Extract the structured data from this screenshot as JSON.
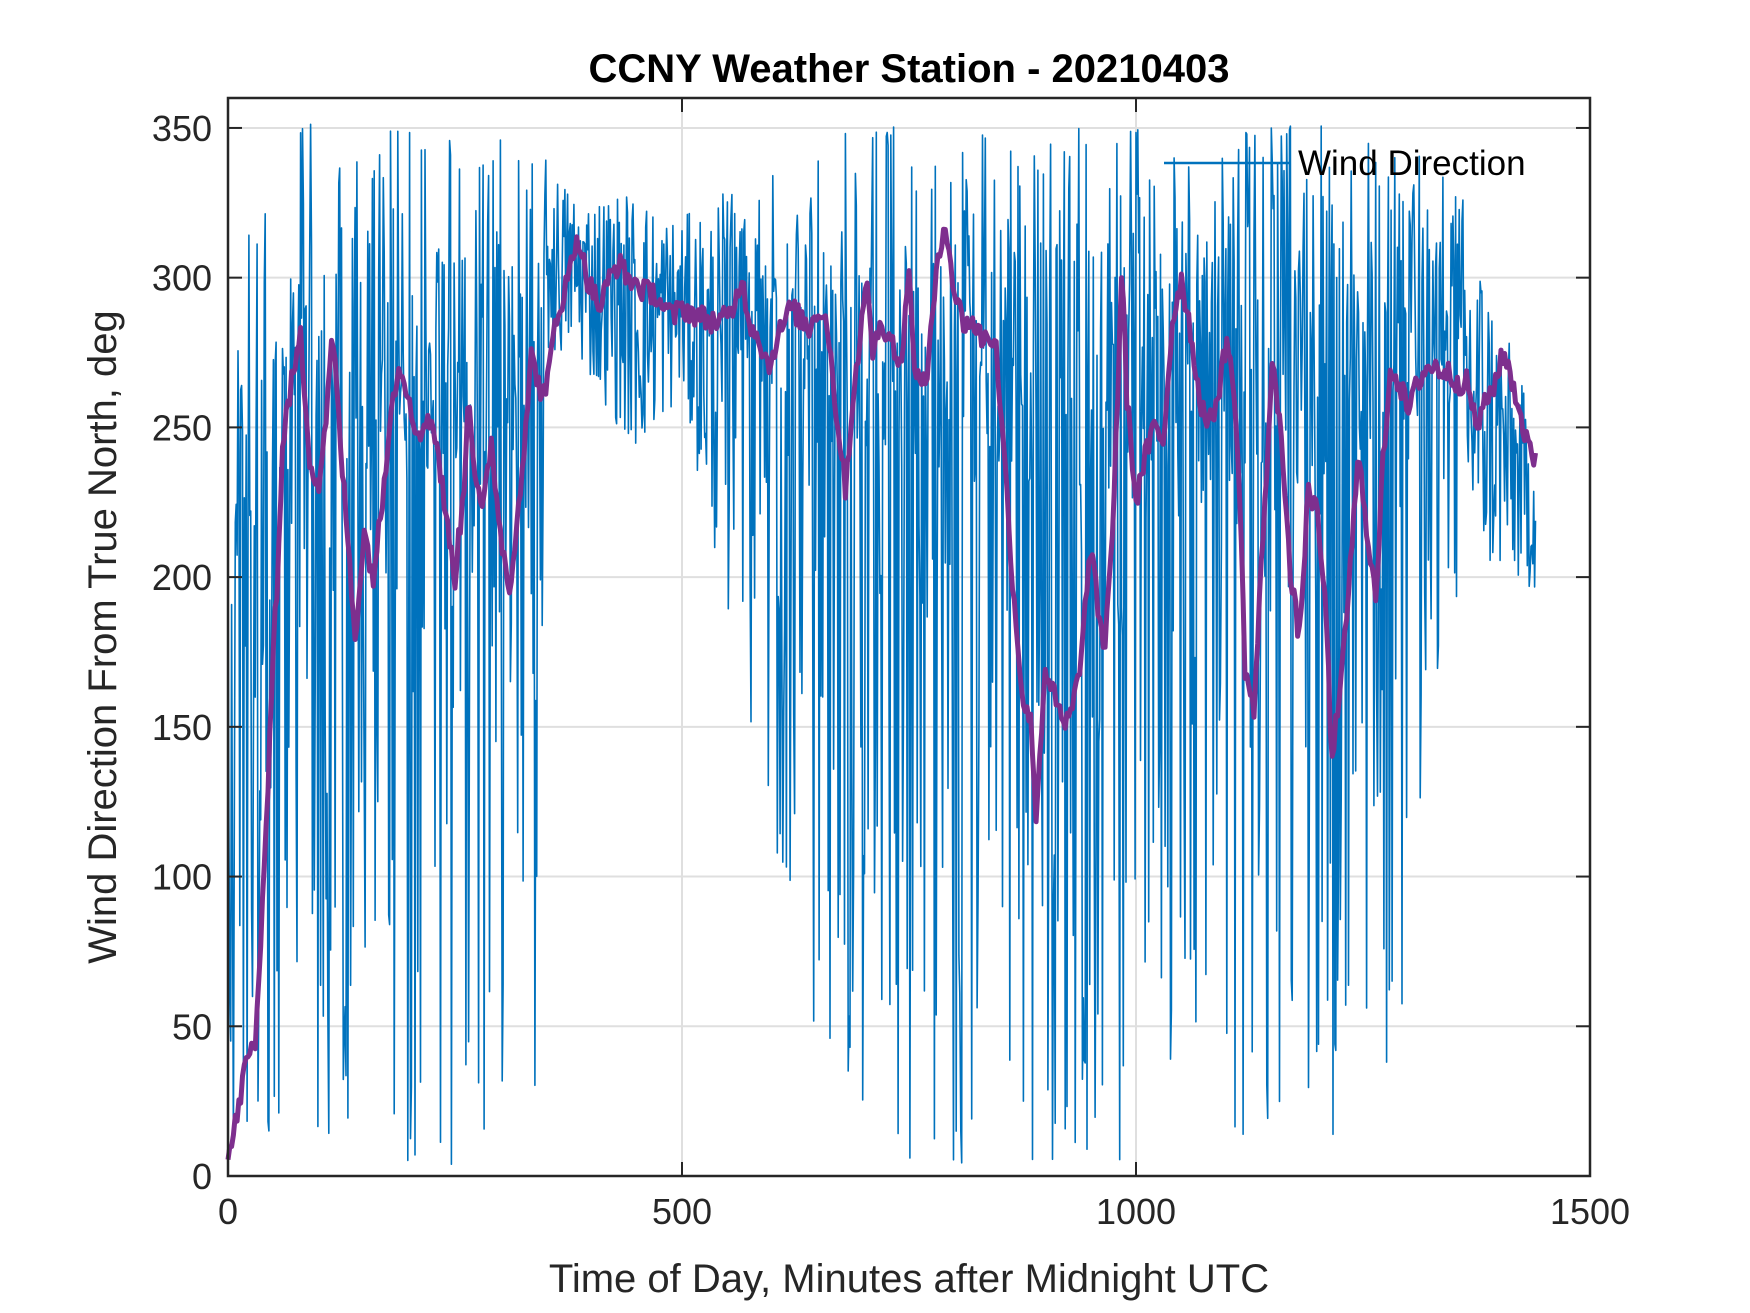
{
  "chart_data": {
    "type": "line",
    "title": "CCNY Weather Station - 20210403",
    "xlabel": "Time of Day, Minutes after Midnight UTC",
    "ylabel": "Wind Direction From True North, deg",
    "xlim": [
      0,
      1500
    ],
    "ylim": [
      0,
      360
    ],
    "xticks": [
      0,
      500,
      1000,
      1500
    ],
    "yticks": [
      0,
      50,
      100,
      150,
      200,
      250,
      300,
      350
    ],
    "grid": true,
    "legend": {
      "placement": "top-right",
      "entries": [
        "Wind Direction"
      ]
    },
    "series": [
      {
        "name": "Wind Direction",
        "color": "#0072bd",
        "style": "raw",
        "x_range": [
          0,
          1440
        ],
        "envelope": [
          {
            "x": 0,
            "low": 0,
            "high": 305
          },
          {
            "x": 50,
            "low": 5,
            "high": 350
          },
          {
            "x": 100,
            "low": 5,
            "high": 352
          },
          {
            "x": 200,
            "low": 3,
            "high": 352
          },
          {
            "x": 300,
            "low": 5,
            "high": 350
          },
          {
            "x": 340,
            "low": 30,
            "high": 345
          },
          {
            "x": 350,
            "low": 270,
            "high": 340
          },
          {
            "x": 380,
            "low": 275,
            "high": 330
          },
          {
            "x": 450,
            "low": 240,
            "high": 330
          },
          {
            "x": 500,
            "low": 260,
            "high": 320
          },
          {
            "x": 650,
            "low": 40,
            "high": 352
          },
          {
            "x": 760,
            "low": 0,
            "high": 352
          },
          {
            "x": 840,
            "low": 5,
            "high": 352
          },
          {
            "x": 950,
            "low": 3,
            "high": 350
          },
          {
            "x": 1050,
            "low": 5,
            "high": 350
          },
          {
            "x": 1200,
            "low": 5,
            "high": 352
          },
          {
            "x": 1300,
            "low": 30,
            "high": 345
          },
          {
            "x": 1360,
            "low": 200,
            "high": 330
          },
          {
            "x": 1440,
            "low": 195,
            "high": 250
          }
        ]
      },
      {
        "name": "",
        "color": "#7e2f8e",
        "style": "smoothed",
        "points": [
          [
            0,
            5
          ],
          [
            10,
            20
          ],
          [
            20,
            38
          ],
          [
            30,
            45
          ],
          [
            40,
            100
          ],
          [
            50,
            180
          ],
          [
            55,
            200
          ],
          [
            60,
            245
          ],
          [
            70,
            265
          ],
          [
            80,
            280
          ],
          [
            90,
            240
          ],
          [
            100,
            230
          ],
          [
            110,
            260
          ],
          [
            115,
            282
          ],
          [
            125,
            240
          ],
          [
            135,
            200
          ],
          [
            140,
            180
          ],
          [
            150,
            215
          ],
          [
            160,
            200
          ],
          [
            170,
            225
          ],
          [
            180,
            260
          ],
          [
            190,
            270
          ],
          [
            200,
            260
          ],
          [
            210,
            245
          ],
          [
            220,
            255
          ],
          [
            230,
            245
          ],
          [
            240,
            220
          ],
          [
            250,
            200
          ],
          [
            260,
            230
          ],
          [
            265,
            265
          ],
          [
            270,
            240
          ],
          [
            280,
            220
          ],
          [
            290,
            245
          ],
          [
            300,
            215
          ],
          [
            310,
            195
          ],
          [
            320,
            225
          ],
          [
            330,
            255
          ],
          [
            335,
            280
          ],
          [
            340,
            265
          ],
          [
            350,
            260
          ],
          [
            360,
            285
          ],
          [
            375,
            300
          ],
          [
            385,
            315
          ],
          [
            395,
            300
          ],
          [
            410,
            290
          ],
          [
            420,
            300
          ],
          [
            430,
            305
          ],
          [
            440,
            300
          ],
          [
            450,
            298
          ],
          [
            460,
            295
          ],
          [
            470,
            295
          ],
          [
            480,
            290
          ],
          [
            490,
            287
          ],
          [
            500,
            290
          ],
          [
            520,
            287
          ],
          [
            540,
            285
          ],
          [
            555,
            288
          ],
          [
            565,
            300
          ],
          [
            575,
            285
          ],
          [
            585,
            280
          ],
          [
            595,
            270
          ],
          [
            605,
            280
          ],
          [
            620,
            290
          ],
          [
            640,
            283
          ],
          [
            650,
            290
          ],
          [
            660,
            285
          ],
          [
            670,
            255
          ],
          [
            680,
            230
          ],
          [
            690,
            265
          ],
          [
            700,
            290
          ],
          [
            705,
            298
          ],
          [
            710,
            275
          ],
          [
            720,
            285
          ],
          [
            730,
            280
          ],
          [
            740,
            270
          ],
          [
            750,
            300
          ],
          [
            755,
            275
          ],
          [
            760,
            265
          ],
          [
            770,
            268
          ],
          [
            780,
            300
          ],
          [
            790,
            320
          ],
          [
            800,
            295
          ],
          [
            810,
            285
          ],
          [
            820,
            285
          ],
          [
            830,
            280
          ],
          [
            845,
            280
          ],
          [
            855,
            240
          ],
          [
            865,
            195
          ],
          [
            875,
            160
          ],
          [
            885,
            150
          ],
          [
            890,
            120
          ],
          [
            900,
            170
          ],
          [
            910,
            160
          ],
          [
            920,
            150
          ],
          [
            930,
            155
          ],
          [
            940,
            175
          ],
          [
            950,
            210
          ],
          [
            960,
            185
          ],
          [
            965,
            175
          ],
          [
            975,
            220
          ],
          [
            985,
            305
          ],
          [
            990,
            260
          ],
          [
            1000,
            225
          ],
          [
            1010,
            240
          ],
          [
            1020,
            250
          ],
          [
            1030,
            245
          ],
          [
            1040,
            285
          ],
          [
            1050,
            300
          ],
          [
            1060,
            282
          ],
          [
            1070,
            260
          ],
          [
            1080,
            250
          ],
          [
            1090,
            260
          ],
          [
            1100,
            280
          ],
          [
            1110,
            255
          ],
          [
            1115,
            220
          ],
          [
            1120,
            170
          ],
          [
            1130,
            155
          ],
          [
            1140,
            215
          ],
          [
            1150,
            270
          ],
          [
            1160,
            250
          ],
          [
            1170,
            200
          ],
          [
            1180,
            180
          ],
          [
            1190,
            230
          ],
          [
            1200,
            220
          ],
          [
            1210,
            185
          ],
          [
            1215,
            140
          ],
          [
            1225,
            160
          ],
          [
            1235,
            200
          ],
          [
            1245,
            240
          ],
          [
            1255,
            215
          ],
          [
            1265,
            190
          ],
          [
            1270,
            230
          ],
          [
            1280,
            270
          ],
          [
            1290,
            265
          ],
          [
            1300,
            255
          ],
          [
            1310,
            265
          ],
          [
            1320,
            270
          ],
          [
            1330,
            270
          ],
          [
            1345,
            268
          ],
          [
            1355,
            265
          ],
          [
            1365,
            265
          ],
          [
            1375,
            250
          ],
          [
            1385,
            258
          ],
          [
            1395,
            265
          ],
          [
            1405,
            275
          ],
          [
            1415,
            265
          ],
          [
            1425,
            252
          ],
          [
            1435,
            240
          ],
          [
            1440,
            240
          ]
        ]
      }
    ]
  }
}
